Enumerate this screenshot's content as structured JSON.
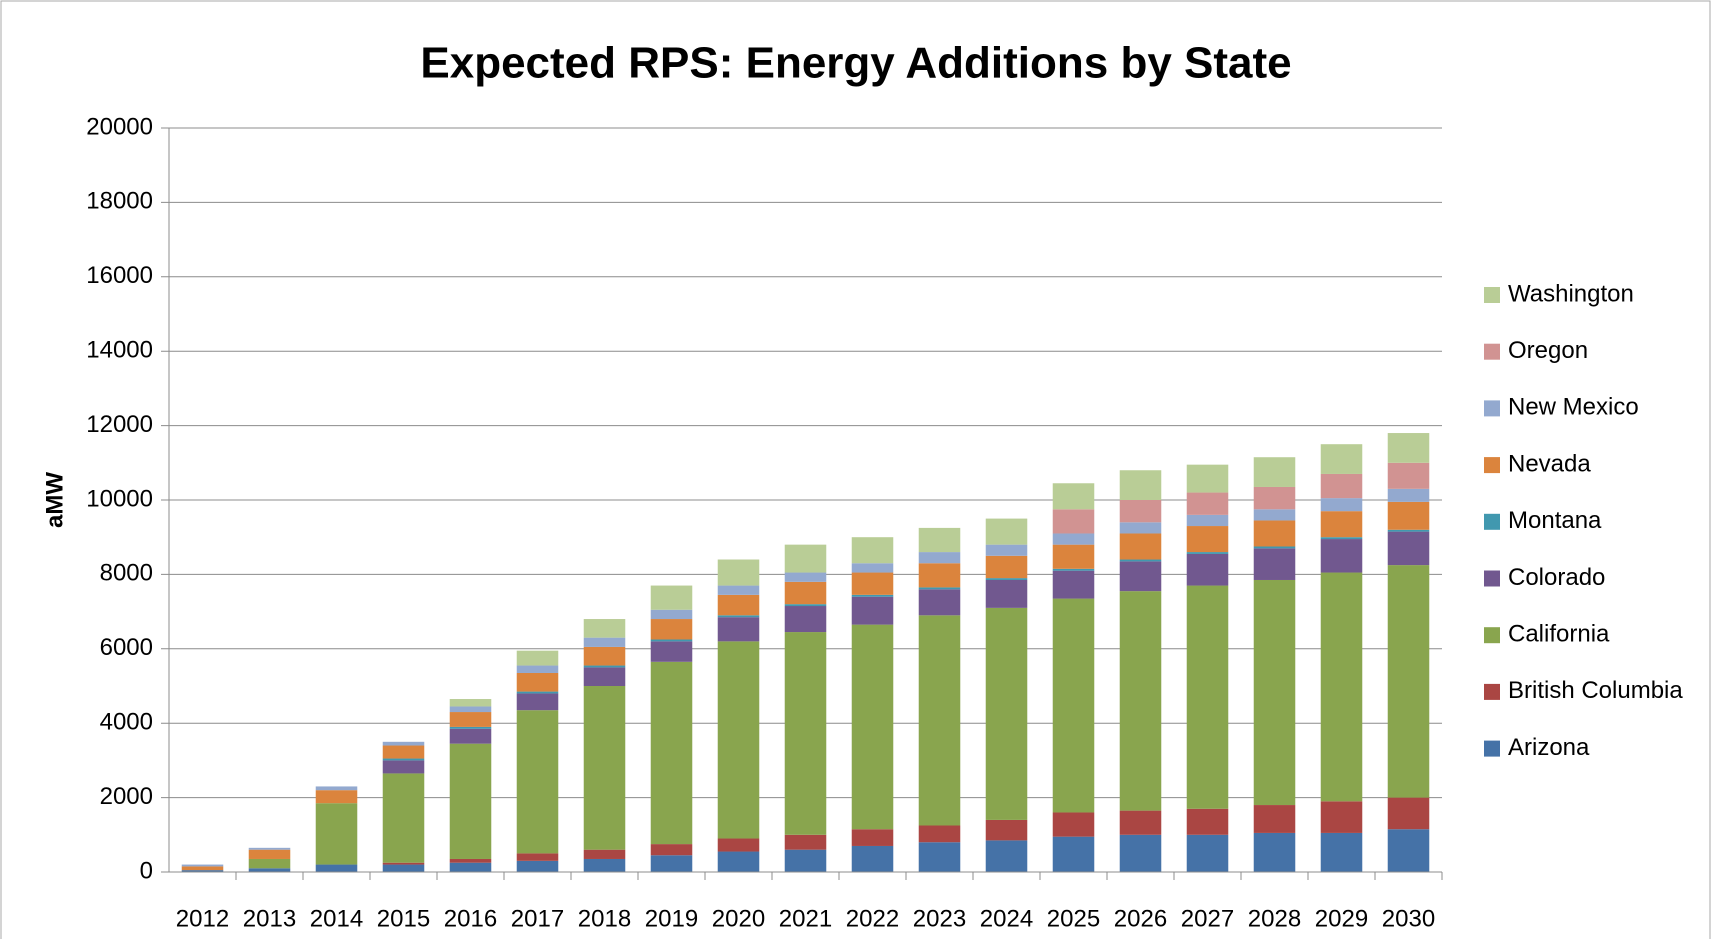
{
  "chart_data": {
    "type": "stacked-bar",
    "title": "Expected RPS: Energy Additions by State",
    "y_label": "aMW",
    "categories": [
      "2012",
      "2013",
      "2014",
      "2015",
      "2016",
      "2017",
      "2018",
      "2019",
      "2020",
      "2021",
      "2022",
      "2023",
      "2024",
      "2025",
      "2026",
      "2027",
      "2028",
      "2029",
      "2030"
    ],
    "series": [
      {
        "name": "Arizona",
        "color": "#4572a7",
        "values": [
          50,
          100,
          200,
          200,
          250,
          300,
          350,
          450,
          550,
          600,
          700,
          800,
          850,
          950,
          1000,
          1000,
          1050,
          1050,
          1150
        ]
      },
      {
        "name": "British Columbia",
        "color": "#aa4643",
        "values": [
          0,
          0,
          0,
          50,
          100,
          200,
          250,
          300,
          350,
          400,
          450,
          450,
          550,
          650,
          650,
          700,
          750,
          850,
          850
        ]
      },
      {
        "name": "California",
        "color": "#89a54e",
        "values": [
          0,
          250,
          1650,
          2400,
          3100,
          3850,
          4400,
          4900,
          5300,
          5450,
          5500,
          5650,
          5700,
          5750,
          5900,
          6000,
          6050,
          6150,
          6250
        ]
      },
      {
        "name": "Colorado",
        "color": "#71588f",
        "values": [
          0,
          0,
          0,
          350,
          400,
          450,
          500,
          550,
          650,
          700,
          750,
          700,
          750,
          750,
          800,
          850,
          850,
          900,
          900
        ]
      },
      {
        "name": "Montana",
        "color": "#4198af",
        "values": [
          0,
          0,
          0,
          50,
          50,
          50,
          50,
          50,
          50,
          50,
          50,
          50,
          50,
          50,
          50,
          50,
          50,
          50,
          50
        ]
      },
      {
        "name": "Nevada",
        "color": "#db843d",
        "values": [
          100,
          250,
          350,
          350,
          400,
          500,
          500,
          550,
          550,
          600,
          600,
          650,
          600,
          650,
          700,
          700,
          700,
          700,
          750
        ]
      },
      {
        "name": "New Mexico",
        "color": "#93a9cf",
        "values": [
          50,
          50,
          100,
          100,
          150,
          200,
          250,
          250,
          250,
          250,
          250,
          300,
          300,
          300,
          300,
          300,
          300,
          350,
          350
        ]
      },
      {
        "name": "Oregon",
        "color": "#d19392",
        "values": [
          0,
          0,
          0,
          0,
          0,
          0,
          0,
          0,
          0,
          0,
          0,
          0,
          0,
          650,
          600,
          600,
          600,
          650,
          700
        ]
      },
      {
        "name": "Washington",
        "color": "#b9cd96",
        "values": [
          0,
          0,
          0,
          0,
          200,
          400,
          500,
          650,
          700,
          750,
          700,
          650,
          700,
          700,
          800,
          750,
          800,
          800,
          800
        ]
      }
    ],
    "ylim": [
      0,
      20000
    ],
    "yticks": [
      0,
      2000,
      4000,
      6000,
      8000,
      10000,
      12000,
      14000,
      16000,
      18000,
      20000
    ],
    "grid": true,
    "legend": "right"
  }
}
